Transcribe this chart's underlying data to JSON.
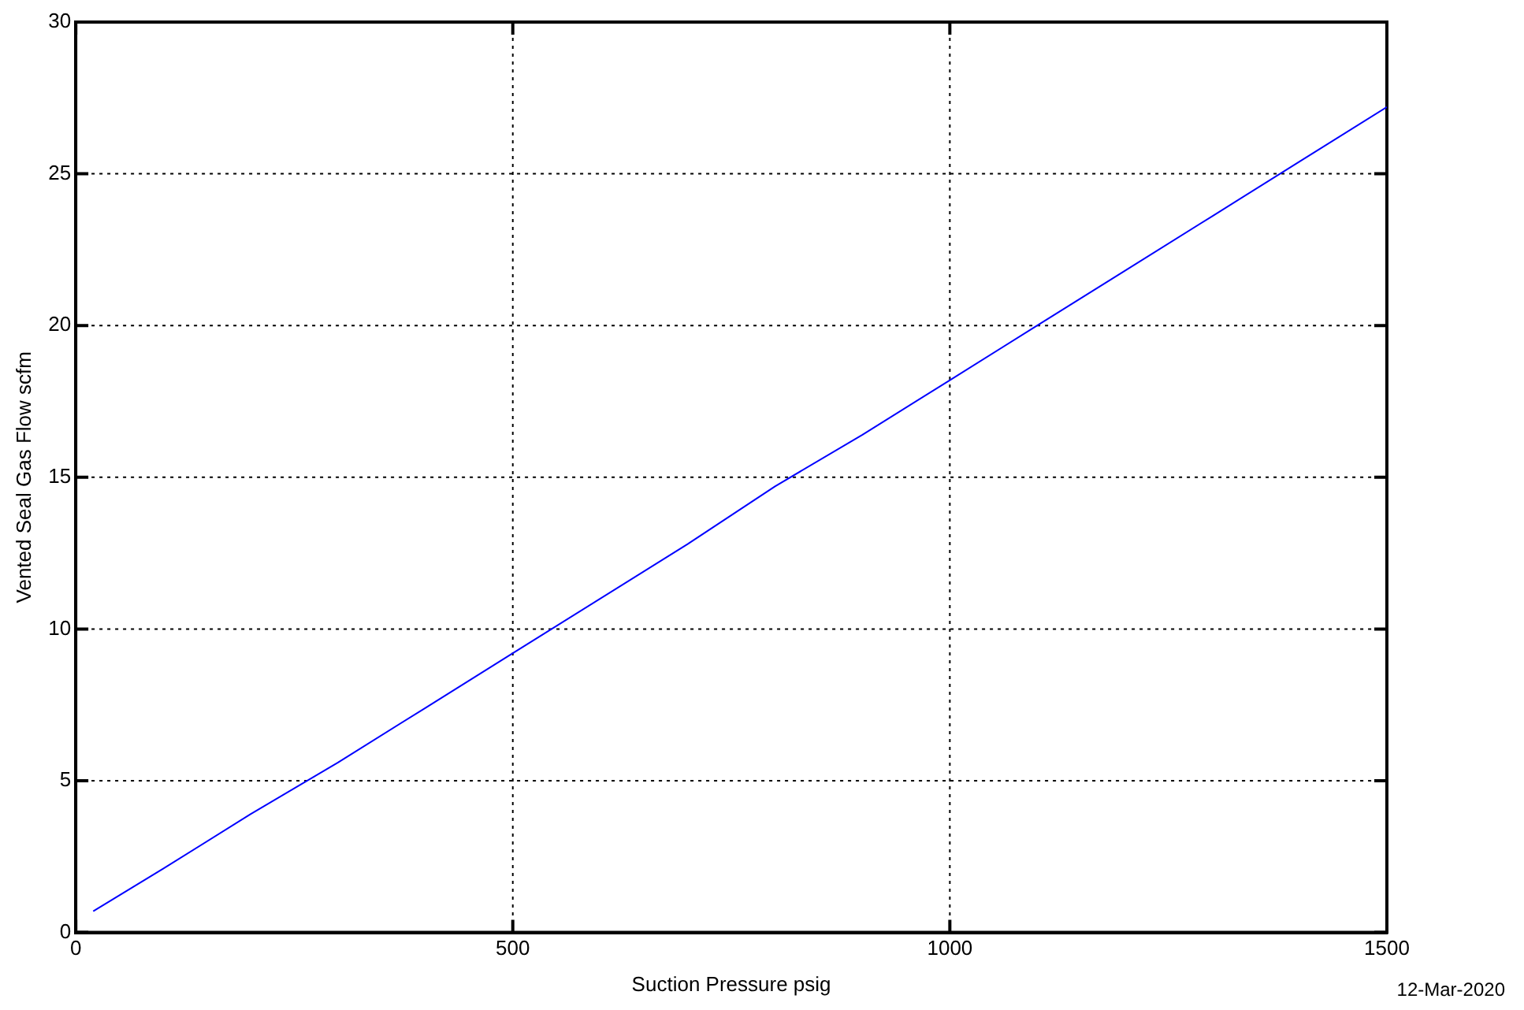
{
  "chart_data": {
    "type": "line",
    "xlabel": "Suction Pressure psig",
    "ylabel": "Vented Seal Gas Flow scfm",
    "annotations": [
      "12-Mar-2020"
    ],
    "x": [
      20,
      100,
      200,
      300,
      400,
      500,
      600,
      700,
      800,
      900,
      1000,
      1100,
      1200,
      1300,
      1400,
      1500
    ],
    "series": [
      {
        "color": "#0000ff",
        "values": [
          0.7,
          2.1,
          3.9,
          5.6,
          7.4,
          9.2,
          11.0,
          12.8,
          14.7,
          16.4,
          18.2,
          20.0,
          21.8,
          23.6,
          25.4,
          27.2
        ]
      }
    ],
    "xlim": [
      0,
      1500
    ],
    "xticks": [
      0,
      500,
      1000,
      1500
    ],
    "ylim": [
      0,
      30
    ],
    "yticks": [
      0,
      5,
      10,
      15,
      20,
      25,
      30
    ],
    "grid": true,
    "legend": false,
    "marker": "none",
    "line_style": "solid"
  }
}
